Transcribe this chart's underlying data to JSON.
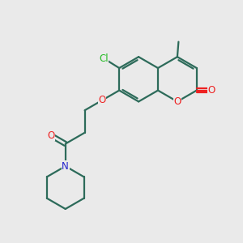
{
  "bg_color": "#eaeaea",
  "bond_color": "#2d6b5a",
  "bond_width": 1.6,
  "atom_colors": {
    "O": "#ee2222",
    "N": "#2222cc",
    "Cl": "#22bb22",
    "C": "#2d6b5a"
  },
  "font_size_atom": 8.5
}
